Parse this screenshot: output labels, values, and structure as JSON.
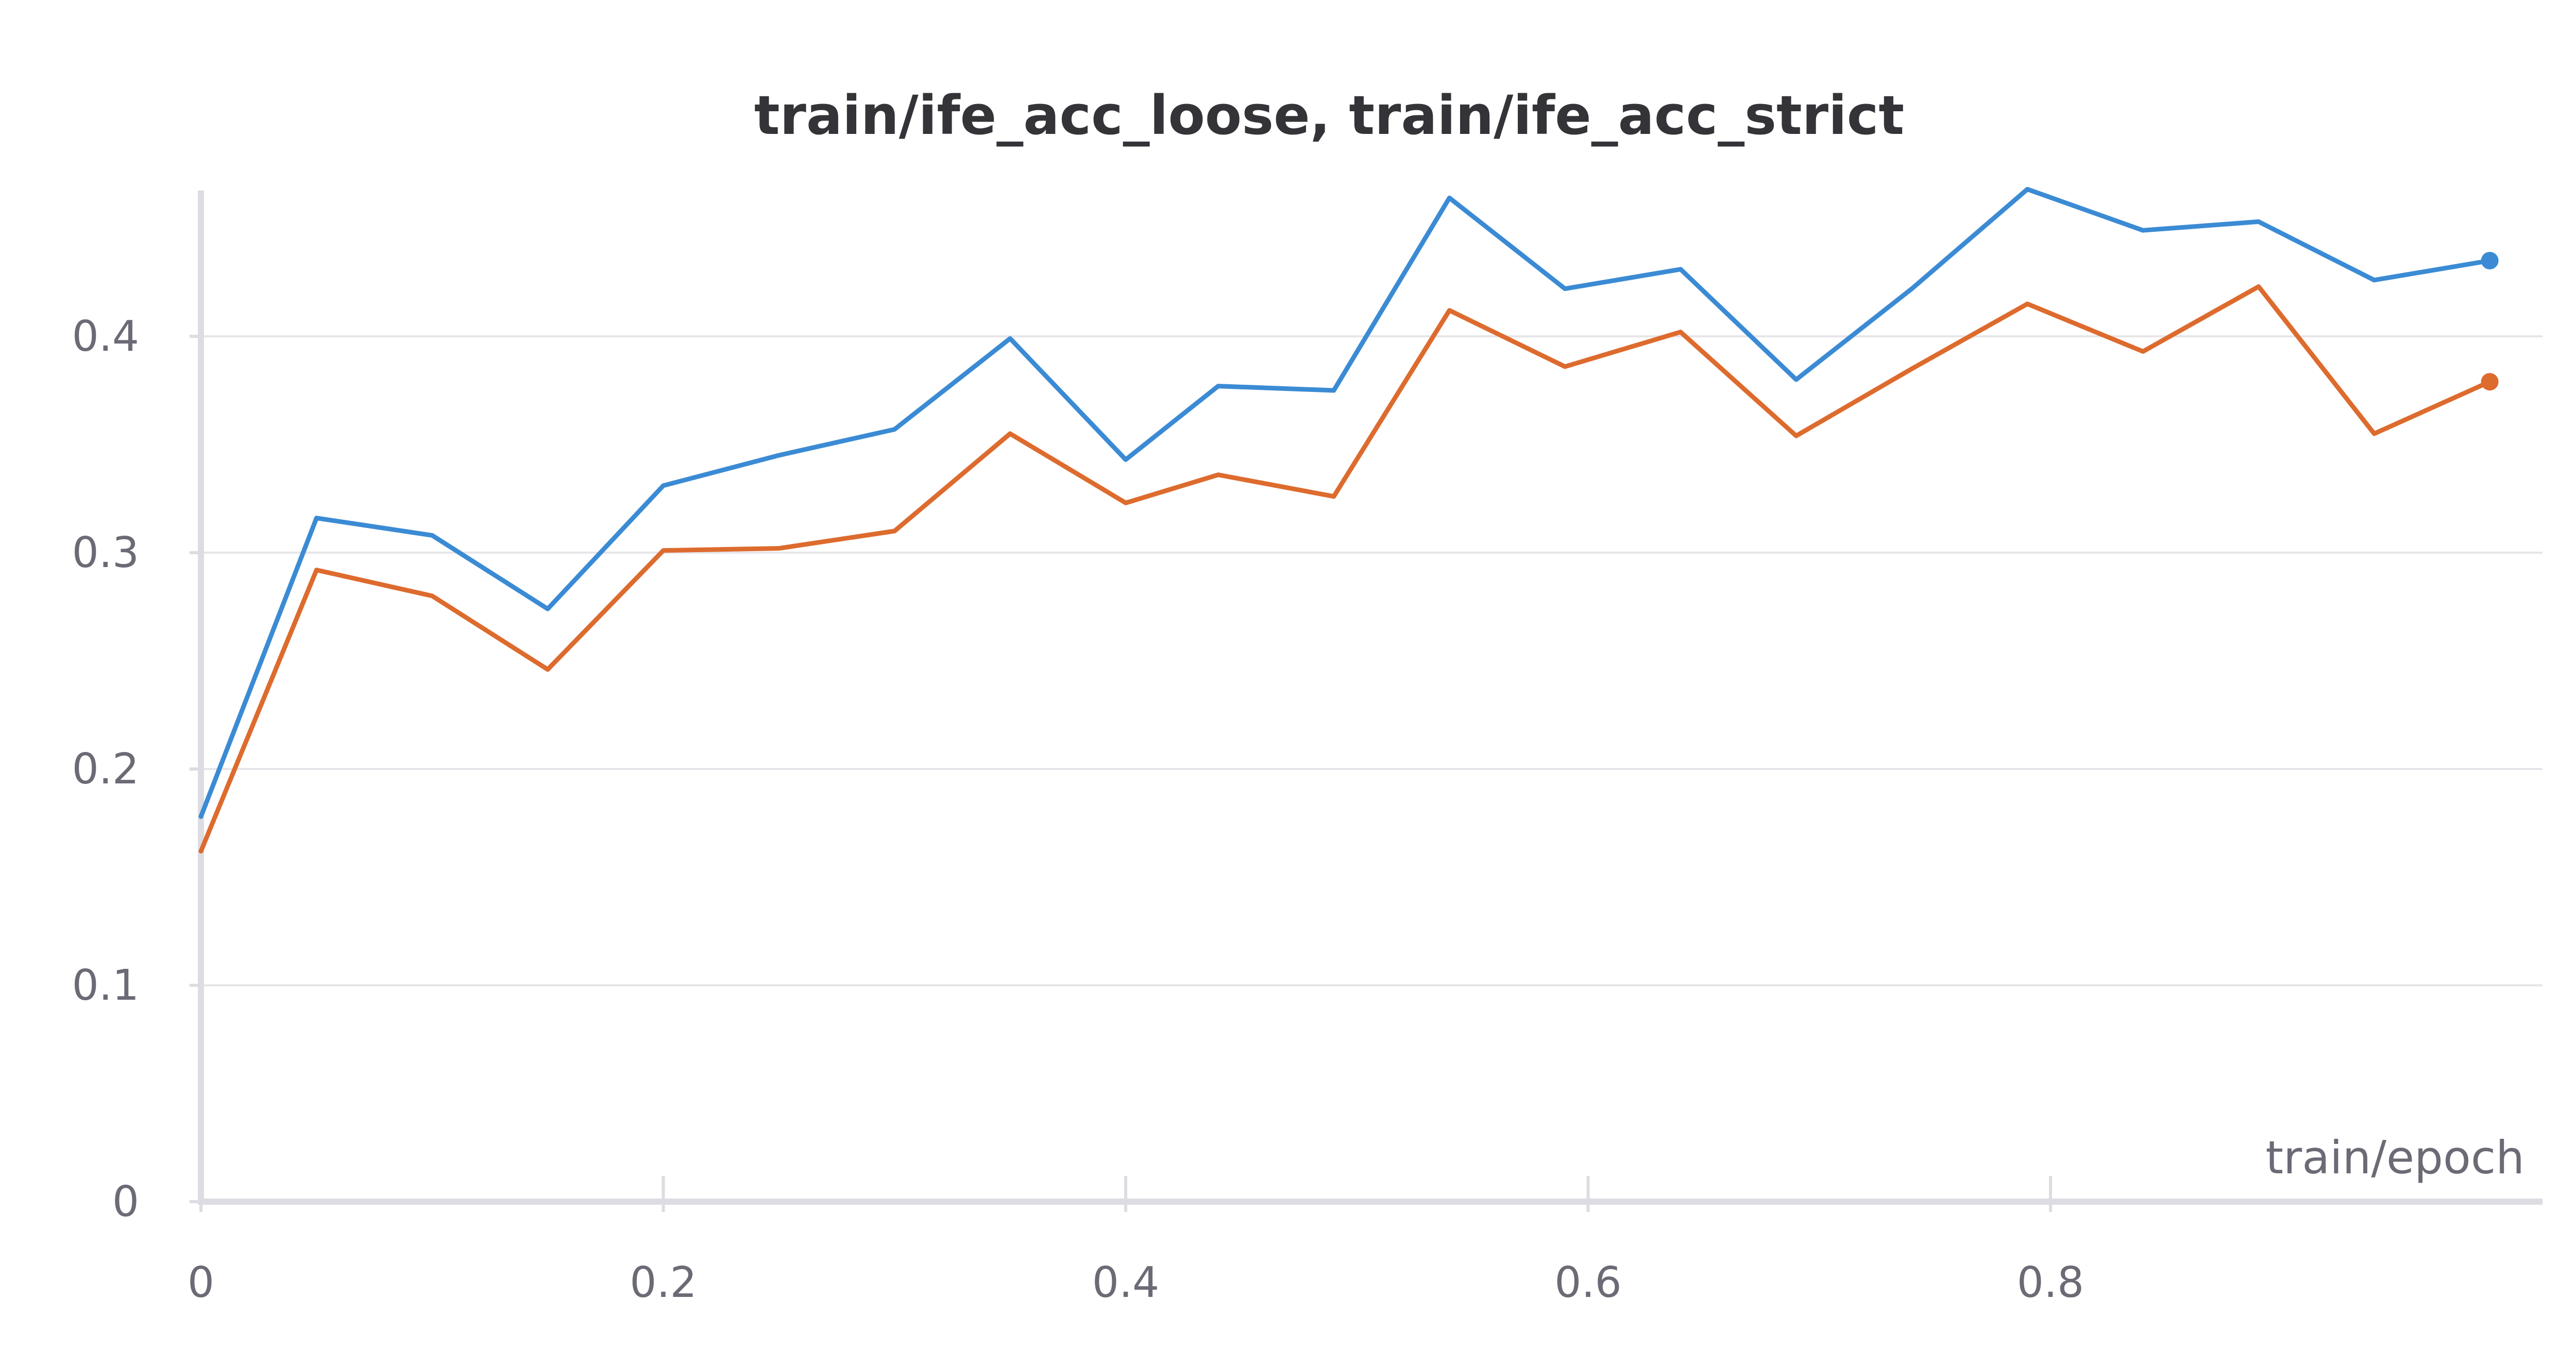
{
  "chart_data": {
    "type": "line",
    "title": "train/ife_acc_loose, train/ife_acc_strict",
    "xlabel": "train/epoch",
    "ylabel": "",
    "xlim": [
      0,
      0.99
    ],
    "ylim": [
      0,
      0.47
    ],
    "x_ticks": [
      0,
      0.2,
      0.4,
      0.6,
      0.8
    ],
    "x_tick_labels": [
      "0",
      "0.2",
      "0.4",
      "0.6",
      "0.8"
    ],
    "y_ticks": [
      0,
      0.1,
      0.2,
      0.3,
      0.4
    ],
    "y_tick_labels": [
      "0",
      "0.1",
      "0.2",
      "0.3",
      "0.4"
    ],
    "grid": true,
    "legend": "none",
    "x": [
      0,
      0.05,
      0.1,
      0.15,
      0.2,
      0.25,
      0.3,
      0.35,
      0.4,
      0.44,
      0.49,
      0.54,
      0.59,
      0.64,
      0.69,
      0.74,
      0.79,
      0.84,
      0.89,
      0.94,
      0.99
    ],
    "series": [
      {
        "color": "#3b8bd4",
        "values": [
          0.178,
          0.316,
          0.308,
          0.274,
          0.331,
          0.345,
          0.357,
          0.399,
          0.343,
          0.377,
          0.375,
          0.464,
          0.422,
          0.431,
          0.38,
          0.422,
          0.468,
          0.449,
          0.453,
          0.426,
          0.435
        ]
      },
      {
        "color": "#dd6b2e",
        "values": [
          0.162,
          0.292,
          0.28,
          0.246,
          0.301,
          0.302,
          0.31,
          0.355,
          0.323,
          0.336,
          0.326,
          0.412,
          0.386,
          0.402,
          0.354,
          0.385,
          0.415,
          0.393,
          0.423,
          0.355,
          0.379
        ]
      }
    ]
  }
}
